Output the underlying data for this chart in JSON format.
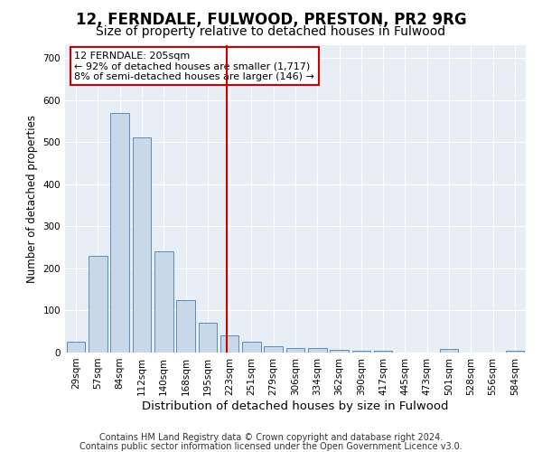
{
  "title1": "12, FERNDALE, FULWOOD, PRESTON, PR2 9RG",
  "title2": "Size of property relative to detached houses in Fulwood",
  "xlabel": "Distribution of detached houses by size in Fulwood",
  "ylabel": "Number of detached properties",
  "categories": [
    "29sqm",
    "57sqm",
    "84sqm",
    "112sqm",
    "140sqm",
    "168sqm",
    "195sqm",
    "223sqm",
    "251sqm",
    "279sqm",
    "306sqm",
    "334sqm",
    "362sqm",
    "390sqm",
    "417sqm",
    "445sqm",
    "473sqm",
    "501sqm",
    "528sqm",
    "556sqm",
    "584sqm"
  ],
  "values": [
    25,
    230,
    570,
    510,
    240,
    125,
    70,
    40,
    25,
    15,
    10,
    10,
    6,
    5,
    5,
    0,
    0,
    8,
    0,
    0,
    5
  ],
  "bar_color": "#c8d8e8",
  "bar_edge_color": "#5b8db8",
  "vline_color": "#cc0000",
  "annotation_text": "12 FERNDALE: 205sqm\n← 92% of detached houses are smaller (1,717)\n8% of semi-detached houses are larger (146) →",
  "annotation_box_color": "#ffffff",
  "annotation_box_edge_color": "#cc0000",
  "ylim": [
    0,
    730
  ],
  "yticks": [
    0,
    100,
    200,
    300,
    400,
    500,
    600,
    700
  ],
  "footer1": "Contains HM Land Registry data © Crown copyright and database right 2024.",
  "footer2": "Contains public sector information licensed under the Open Government Licence v3.0.",
  "fig_bg_color": "#ffffff",
  "plot_bg_color": "#e8eef5",
  "title1_fontsize": 12,
  "title2_fontsize": 10,
  "xlabel_fontsize": 9.5,
  "ylabel_fontsize": 8.5,
  "tick_fontsize": 7.5,
  "footer_fontsize": 7,
  "annot_fontsize": 8
}
